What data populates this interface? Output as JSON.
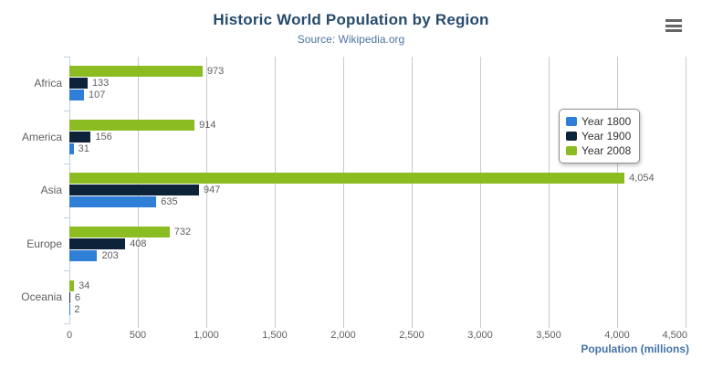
{
  "colors": {
    "title": "#274b6d",
    "subtitle": "#4d759e",
    "axis_title": "#4572a7",
    "labels": "#606060",
    "gridline": "#c9c9c9",
    "category_axis_line": "#c0d0e0",
    "legend_border": "#909090",
    "legend_text": "#333333",
    "menu_icon": "#666666"
  },
  "icons": {
    "export_menu": "hamburger"
  },
  "chart_data": {
    "type": "bar",
    "orientation": "horizontal",
    "title": "Historic World Population by Region",
    "subtitle": "Source: Wikipedia.org",
    "categories": [
      "Africa",
      "America",
      "Asia",
      "Europe",
      "Oceania"
    ],
    "series": [
      {
        "name": "Year 1800",
        "color": "#2f7ed8",
        "values": [
          107,
          31,
          635,
          203,
          2
        ]
      },
      {
        "name": "Year 1900",
        "color": "#0d233a",
        "values": [
          133,
          156,
          947,
          408,
          6
        ]
      },
      {
        "name": "Year 2008",
        "color": "#8bbc21",
        "values": [
          973,
          914,
          4054,
          732,
          34
        ]
      }
    ],
    "bar_display_order_top_to_bottom": [
      "Year 2008",
      "Year 1900",
      "Year 1800"
    ],
    "data_labels": true,
    "xlabel": "Population (millions)",
    "xlim": [
      0,
      4500
    ],
    "xticks": [
      0,
      500,
      1000,
      1500,
      2000,
      2500,
      3000,
      3500,
      4000,
      4500
    ],
    "grid": true,
    "legend": {
      "position": "right-inside",
      "items": [
        "Year 1800",
        "Year 1900",
        "Year 2008"
      ]
    }
  }
}
